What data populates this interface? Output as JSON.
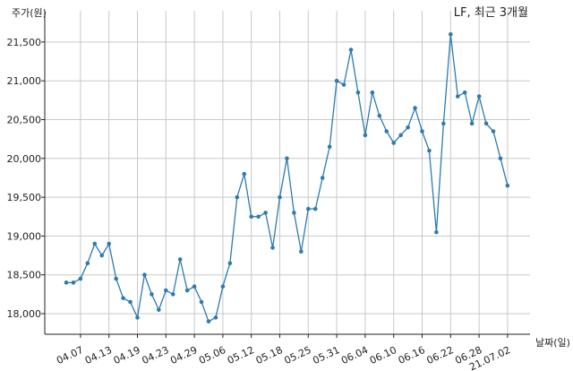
{
  "chart_data": {
    "type": "line",
    "title": "LF, 최근 3개월",
    "ylabel": "주가(원)",
    "xlabel": "날짜(일)",
    "ylim": [
      17700,
      21800
    ],
    "yticks": [
      18000,
      18500,
      19000,
      19500,
      20000,
      20500,
      21000,
      21500
    ],
    "ytick_labels": [
      "18,000",
      "18,500",
      "19,000",
      "19,500",
      "20,000",
      "20,500",
      "21,000",
      "21,500"
    ],
    "xticks": [
      {
        "index": 2,
        "label": "04.07"
      },
      {
        "index": 6,
        "label": "04.13"
      },
      {
        "index": 10,
        "label": "04.19"
      },
      {
        "index": 14,
        "label": "04.23"
      },
      {
        "index": 18,
        "label": "04.29"
      },
      {
        "index": 22,
        "label": "05.06"
      },
      {
        "index": 26,
        "label": "05.12"
      },
      {
        "index": 30,
        "label": "05.18"
      },
      {
        "index": 34,
        "label": "05.25"
      },
      {
        "index": 38,
        "label": "05.31"
      },
      {
        "index": 42,
        "label": "06.04"
      },
      {
        "index": 46,
        "label": "06.10"
      },
      {
        "index": 50,
        "label": "06.16"
      },
      {
        "index": 54,
        "label": "06.22"
      },
      {
        "index": 58,
        "label": "06.28"
      },
      {
        "index": 62,
        "label": "21.07.02"
      }
    ],
    "grid": true,
    "color": "#2e7bb0",
    "series": [
      {
        "values": [
          18400,
          18400,
          18450,
          18650,
          18900,
          18750,
          18900,
          18450,
          18200,
          18150,
          17950,
          18500,
          18250,
          18050,
          18300,
          18250,
          18700,
          18300,
          18350,
          18150,
          17900,
          17950,
          18350,
          18650,
          19500,
          19800,
          19250,
          19250,
          19300,
          18850,
          19500,
          20000,
          19300,
          18800,
          19350,
          19350,
          19750,
          20150,
          21000,
          20950,
          21400,
          20850,
          20300,
          20850,
          20550,
          20350,
          20200,
          20300,
          20400,
          20650,
          20350,
          20100,
          19050,
          20450,
          21600,
          20800,
          20850,
          20450,
          20800,
          20450,
          20350,
          20000,
          19650
        ]
      }
    ]
  }
}
